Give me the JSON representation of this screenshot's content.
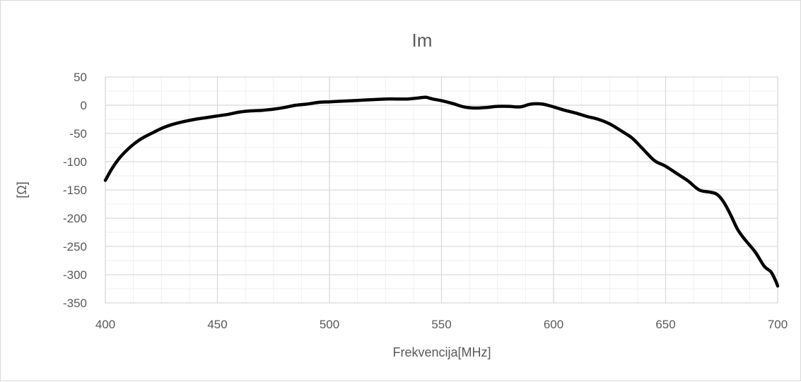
{
  "chart_data": {
    "type": "line",
    "title": "Im",
    "xlabel": "Frekvencija[MHz]",
    "ylabel": "[Ω]",
    "xlim": [
      400,
      700
    ],
    "ylim": [
      -350,
      50
    ],
    "xticks": [
      400,
      450,
      500,
      550,
      600,
      650,
      700
    ],
    "yticks": [
      50,
      0,
      -50,
      -100,
      -150,
      -200,
      -250,
      -300,
      -350
    ],
    "grid": true,
    "legend": "none",
    "colors": {
      "line": "#000000",
      "major_grid": "#d9d9d9",
      "minor_grid": "#efefef",
      "text": "#595959"
    },
    "series": [
      {
        "x": [
          400,
          403,
          406,
          409,
          412,
          415,
          418,
          421,
          424,
          427,
          430,
          435,
          440,
          445,
          450,
          455,
          460,
          465,
          470,
          475,
          480,
          485,
          490,
          495,
          500,
          505,
          510,
          515,
          520,
          525,
          530,
          535,
          540,
          543,
          546,
          550,
          555,
          560,
          565,
          570,
          575,
          580,
          585,
          590,
          595,
          600,
          605,
          610,
          615,
          620,
          625,
          630,
          635,
          640,
          645,
          650,
          655,
          660,
          665,
          670,
          673,
          676,
          679,
          682,
          685,
          690,
          694,
          697,
          699,
          700
        ],
        "values": [
          -133,
          -112,
          -95,
          -82,
          -71,
          -62,
          -55,
          -49,
          -43,
          -38,
          -34,
          -29,
          -25,
          -22,
          -19,
          -16,
          -12,
          -10,
          -9,
          -7,
          -4,
          0,
          2,
          5,
          6,
          7,
          8,
          9,
          10,
          11,
          11,
          11,
          13,
          14,
          11,
          8,
          3,
          -3,
          -5,
          -4,
          -2,
          -2,
          -3,
          2,
          2,
          -3,
          -9,
          -14,
          -20,
          -25,
          -33,
          -45,
          -58,
          -78,
          -98,
          -108,
          -121,
          -134,
          -150,
          -154,
          -158,
          -172,
          -194,
          -219,
          -236,
          -260,
          -285,
          -295,
          -310,
          -320
        ]
      }
    ]
  }
}
